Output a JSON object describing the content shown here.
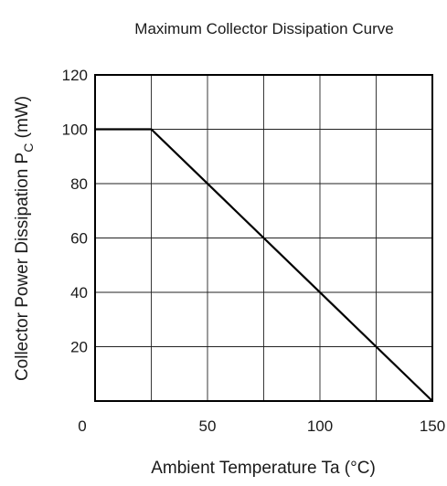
{
  "chart_data": {
    "type": "line",
    "title": "Maximum Collector Dissipation Curve",
    "xlabel": "Ambient Temperature  Ta  (°C)",
    "ylabel": {
      "prefix": "Collector Power Dissipation  P",
      "subscript": "C",
      "suffix": "  (mW)"
    },
    "xlim": [
      0,
      150
    ],
    "ylim": [
      0,
      120
    ],
    "x_ticks": [
      0,
      50,
      100,
      150
    ],
    "x_tick_labels": [
      "0",
      "50",
      "100",
      "150"
    ],
    "x_gridlines": [
      25,
      50,
      75,
      100,
      125
    ],
    "y_ticks": [
      20,
      40,
      60,
      80,
      100,
      120
    ],
    "y_tick_labels": [
      "20",
      "40",
      "60",
      "80",
      "100",
      "120"
    ],
    "grid": true,
    "series": [
      {
        "x": [
          0,
          25,
          150
        ],
        "y": [
          100,
          100,
          0
        ]
      }
    ]
  }
}
